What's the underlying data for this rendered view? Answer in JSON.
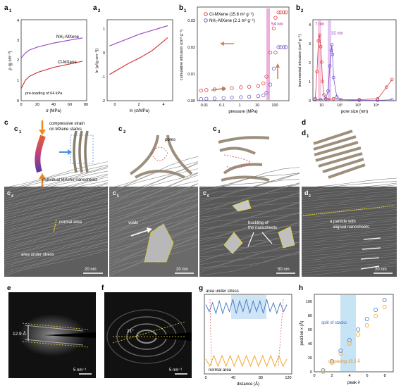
{
  "panel_labels": {
    "a1": "a",
    "a1s": "1",
    "a2": "a",
    "a2s": "2",
    "b1": "b",
    "b1s": "1",
    "b2": "b",
    "b2s": "2",
    "c": "c",
    "c1": "c",
    "c1s": "1",
    "c2": "c",
    "c2s": "2",
    "c3": "c",
    "c3s": "3",
    "d": "d",
    "d1": "d",
    "d1s": "1",
    "c4": "c",
    "c4s": "4",
    "c5": "c",
    "c5s": "5",
    "c6": "c",
    "c6s": "6",
    "d2": "d",
    "d2s": "2",
    "e": "e",
    "f": "f",
    "g": "g",
    "h": "h"
  },
  "panel_a1": {
    "ylabel": "ρ (g cm⁻³)",
    "xlabel": "σ (MPa)",
    "xticks": [
      "0",
      "20",
      "40",
      "60",
      "80"
    ],
    "yticks": [
      "0",
      "1",
      "2",
      "3",
      "4"
    ],
    "series_labels": [
      "NH₂-MXene",
      "Cl-MXene"
    ],
    "note": "pre-loading of 64 kPa"
  },
  "panel_a2": {
    "ylabel": "ln (ρ/(g cm⁻³))",
    "xlabel": "ln (σ/MPa)",
    "xticks": [
      "0",
      "2",
      "4"
    ],
    "yticks": [
      "-2",
      "-1",
      "0",
      "1"
    ]
  },
  "panel_b1": {
    "ylabel": "cumulative intrusion (cm³ g⁻¹)",
    "xlabel": "pressure (MPa)",
    "xticks": [
      "0.01",
      "0.1",
      "1",
      "10",
      "100"
    ],
    "yticks": [
      "0.00",
      "0.01",
      "0.02",
      "0.03"
    ],
    "legend": [
      "Cl-MXene (15.8 m² g⁻¹)",
      "NH₂-MXene (2.1 m² g⁻¹)"
    ],
    "annotation": "54 nm"
  },
  "panel_b2": {
    "ylabel": "incremental intrusion (cm³ g⁻¹)",
    "xlabel": "pore size (nm)",
    "yticks": [
      "0",
      "1",
      "2",
      "3",
      "4"
    ],
    "xticks": [
      "10",
      "10²",
      "10³",
      "10⁴"
    ],
    "annotations": [
      "7 nm",
      "32 nm"
    ]
  },
  "panel_c": {
    "c1_top": "compressive strain",
    "c1_top2": "on MXene stacks",
    "c1_bottom": "individual MXene nanosheets",
    "c2_label": "pores"
  },
  "tem": {
    "c4_a": "normal area",
    "c4_b": "area under stress",
    "c4_scale": "20 nm",
    "c5_a": "voids",
    "c5_scale": "20 nm",
    "c6_a": "buckling of",
    "c6_b": "the nanosheets",
    "c6_scale": "50 nm",
    "d2_a": "a particle with",
    "d2_b": "aligned nanosheets",
    "d2_scale": "20 nm"
  },
  "saed": {
    "e_value": "12.9 Å",
    "e_scale": "5 nm⁻¹",
    "f_value": "21°",
    "f_scale": "5 nm⁻¹"
  },
  "panel_g": {
    "title_top": "area under stress",
    "title_bottom": "normal area",
    "xlabel": "distance (Å)",
    "xticks": [
      "0",
      "40",
      "80",
      "120"
    ]
  },
  "panel_h": {
    "ylabel": "position x (Å)",
    "xlabel": "peak #",
    "xticks": [
      "0",
      "2",
      "4",
      "6",
      "8"
    ],
    "yticks": [
      "0",
      "20",
      "40",
      "60",
      "80",
      "100"
    ],
    "note1": "split of stacks",
    "note2": "d-spacing 13.2 Å"
  },
  "chart_data": [
    {
      "type": "line",
      "id": "a1",
      "series": [
        {
          "name": "NH₂-MXene",
          "x": [
            0,
            5,
            10,
            20,
            40,
            60,
            75
          ],
          "y": [
            2.1,
            2.35,
            2.5,
            2.65,
            2.85,
            3.0,
            3.1
          ]
        },
        {
          "name": "Cl-MXene",
          "x": [
            0,
            5,
            10,
            20,
            40,
            60,
            75
          ],
          "y": [
            0.6,
            1.0,
            1.2,
            1.4,
            1.65,
            1.82,
            1.95
          ]
        }
      ],
      "xlim": [
        0,
        80
      ],
      "ylim": [
        0,
        4
      ]
    },
    {
      "type": "line",
      "id": "a2",
      "series": [
        {
          "x": [
            -0.5,
            0,
            1,
            2,
            3,
            4.3
          ],
          "y": [
            0.3,
            0.4,
            0.6,
            0.8,
            0.95,
            1.15
          ]
        },
        {
          "x": [
            -0.5,
            0,
            1,
            2,
            3,
            4.3
          ],
          "y": [
            -0.9,
            -0.75,
            -0.45,
            -0.2,
            0.1,
            0.65
          ]
        }
      ],
      "xlim": [
        -0.7,
        4.7
      ],
      "ylim": [
        -2,
        1.4
      ]
    },
    {
      "type": "scatter",
      "id": "b1",
      "series": [
        {
          "name": "Cl-MXene (15.8 m² g⁻¹)",
          "x": [
            0.005,
            0.01,
            0.03,
            0.1,
            0.3,
            1,
            3,
            10,
            20,
            30,
            50,
            80,
            100,
            150,
            200,
            300,
            400
          ],
          "y": [
            0.0038,
            0.004,
            0.0042,
            0.0045,
            0.0047,
            0.005,
            0.0052,
            0.0055,
            0.0065,
            0.009,
            0.018,
            0.027,
            0.031,
            0.033,
            0.033,
            0.033,
            0.033
          ]
        },
        {
          "name": "NH₂-MXene (2.1 m² g⁻¹)",
          "x": [
            0.005,
            0.01,
            0.03,
            0.1,
            0.3,
            1,
            3,
            10,
            20,
            30,
            50,
            80,
            100,
            150,
            200,
            300,
            400
          ],
          "y": [
            0.0006,
            0.0007,
            0.0008,
            0.001,
            0.0012,
            0.0013,
            0.0015,
            0.0017,
            0.002,
            0.003,
            0.006,
            0.012,
            0.018,
            0.02,
            0.02,
            0.02,
            0.02
          ]
        }
      ],
      "xlim": [
        0.003,
        600
      ],
      "ylim": [
        0,
        0.035
      ]
    },
    {
      "type": "line",
      "id": "b2",
      "series": [
        {
          "x": [
            4,
            5,
            6,
            7,
            8,
            9,
            10,
            12,
            15,
            20,
            40,
            100,
            1000,
            10000,
            30000,
            60000
          ],
          "y": [
            0.1,
            1.5,
            3.1,
            3.4,
            2.8,
            2.0,
            1.0,
            0.3,
            0.1,
            0.05,
            0.1,
            0.05,
            0.05,
            0.1,
            0.7,
            1.1
          ]
        },
        {
          "x": [
            4,
            8,
            15,
            20,
            25,
            30,
            32,
            35,
            40,
            60,
            100,
            1000,
            10000,
            60000
          ],
          "y": [
            0.05,
            0.05,
            0.1,
            0.5,
            1.8,
            2.6,
            2.9,
            2.4,
            1.2,
            0.2,
            0.05,
            0.02,
            0.02,
            0.05
          ]
        }
      ],
      "xlim": [
        3,
        100000
      ],
      "ylim": [
        0,
        4.2
      ]
    },
    {
      "type": "line",
      "id": "g",
      "series": [
        {
          "x": [
            0,
            5,
            10,
            15,
            20,
            25,
            30,
            35,
            40,
            45,
            50,
            55,
            60,
            65,
            70,
            75,
            80,
            85,
            90,
            95,
            100,
            105,
            110,
            115,
            120
          ],
          "y": [
            0.75,
            0.55,
            0.8,
            0.5,
            0.85,
            0.5,
            0.8,
            0.55,
            0.9,
            0.5,
            0.85,
            0.55,
            0.9,
            0.5,
            0.85,
            0.55,
            0.85,
            0.5,
            0.9,
            0.55,
            0.8,
            0.5,
            0.8,
            0.55,
            0.75
          ]
        },
        {
          "x": [
            0,
            6,
            12,
            18,
            24,
            30,
            36,
            42,
            48,
            54,
            60,
            66,
            72,
            78,
            84,
            90,
            96,
            102,
            108,
            114,
            120
          ],
          "y": [
            0.2,
            0.0,
            0.3,
            0.0,
            0.3,
            0.0,
            0.3,
            0.0,
            0.3,
            0.0,
            0.3,
            0.0,
            0.3,
            0.0,
            0.3,
            0.0,
            0.3,
            0.0,
            0.3,
            0.0,
            0.2
          ]
        }
      ],
      "xlim": [
        0,
        125
      ]
    },
    {
      "type": "scatter",
      "id": "h",
      "series": [
        {
          "x": [
            1,
            2,
            3,
            4,
            5,
            6,
            7,
            8
          ],
          "y": [
            2,
            15,
            30,
            45,
            60,
            75,
            88,
            102
          ]
        },
        {
          "x": [
            1,
            2,
            3,
            4,
            5,
            6,
            7,
            8
          ],
          "y": [
            0,
            13,
            26,
            40,
            53,
            66,
            79,
            92
          ]
        }
      ],
      "xlim": [
        0,
        9
      ],
      "ylim": [
        0,
        110
      ]
    }
  ]
}
